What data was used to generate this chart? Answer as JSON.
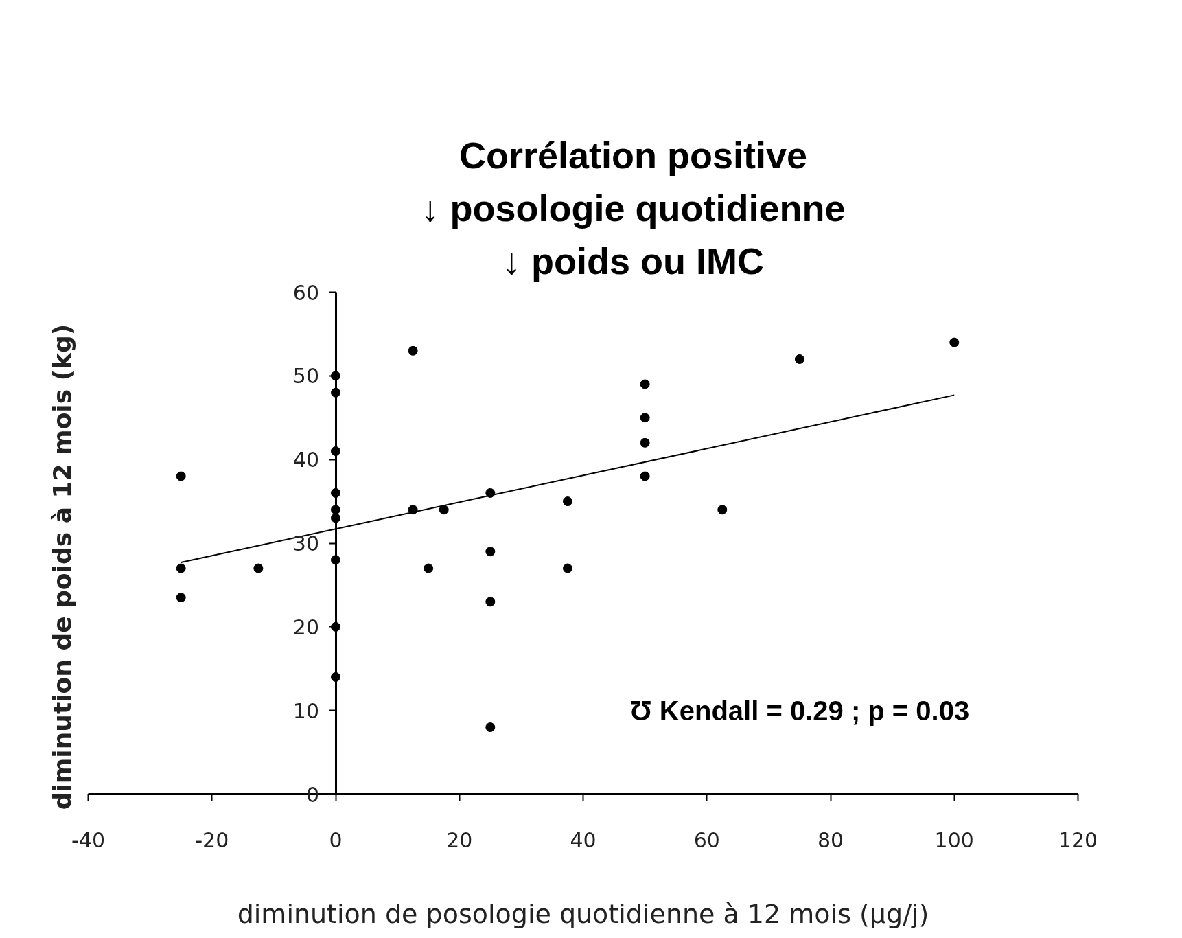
{
  "chart_data": {
    "type": "scatter",
    "xlabel": "diminution de posologie quotidienne à 12 mois (µg/j)",
    "ylabel": "diminution de poids à 12 mois (kg)",
    "annotations": [
      "Corrélation positive\n↓ posologie quotidienne\n↓ poids ou IMC",
      "Ʊ Kendall = 0.29 ; p = 0.03"
    ],
    "xlim": [
      -40,
      120
    ],
    "ylim": [
      0,
      60
    ],
    "xticks": [
      -40,
      -20,
      0,
      20,
      40,
      60,
      80,
      100,
      120
    ],
    "yticks": [
      0,
      10,
      20,
      30,
      40,
      50,
      60
    ],
    "grid": false,
    "marker": "circle",
    "series": [
      {
        "color": "#000000",
        "x": [
          -25,
          -25,
          -25,
          -12.5,
          0,
          0,
          0,
          0,
          0,
          0,
          0,
          0,
          0,
          12.5,
          12.5,
          17.5,
          15,
          25,
          25,
          25,
          25,
          37.5,
          37.5,
          50,
          50,
          50,
          50,
          62.5,
          75,
          100
        ],
        "values": [
          38,
          27,
          23.5,
          27,
          50,
          48,
          41,
          36,
          34,
          33,
          28,
          20,
          14,
          53,
          34,
          34,
          27,
          36,
          29,
          23,
          8,
          35,
          27,
          49,
          45,
          42,
          38,
          34,
          52,
          54
        ]
      },
      {
        "type": "line",
        "marker": "none",
        "color": "#000000",
        "x": [
          -25,
          100
        ],
        "values": [
          27.7,
          47.7
        ]
      }
    ]
  }
}
